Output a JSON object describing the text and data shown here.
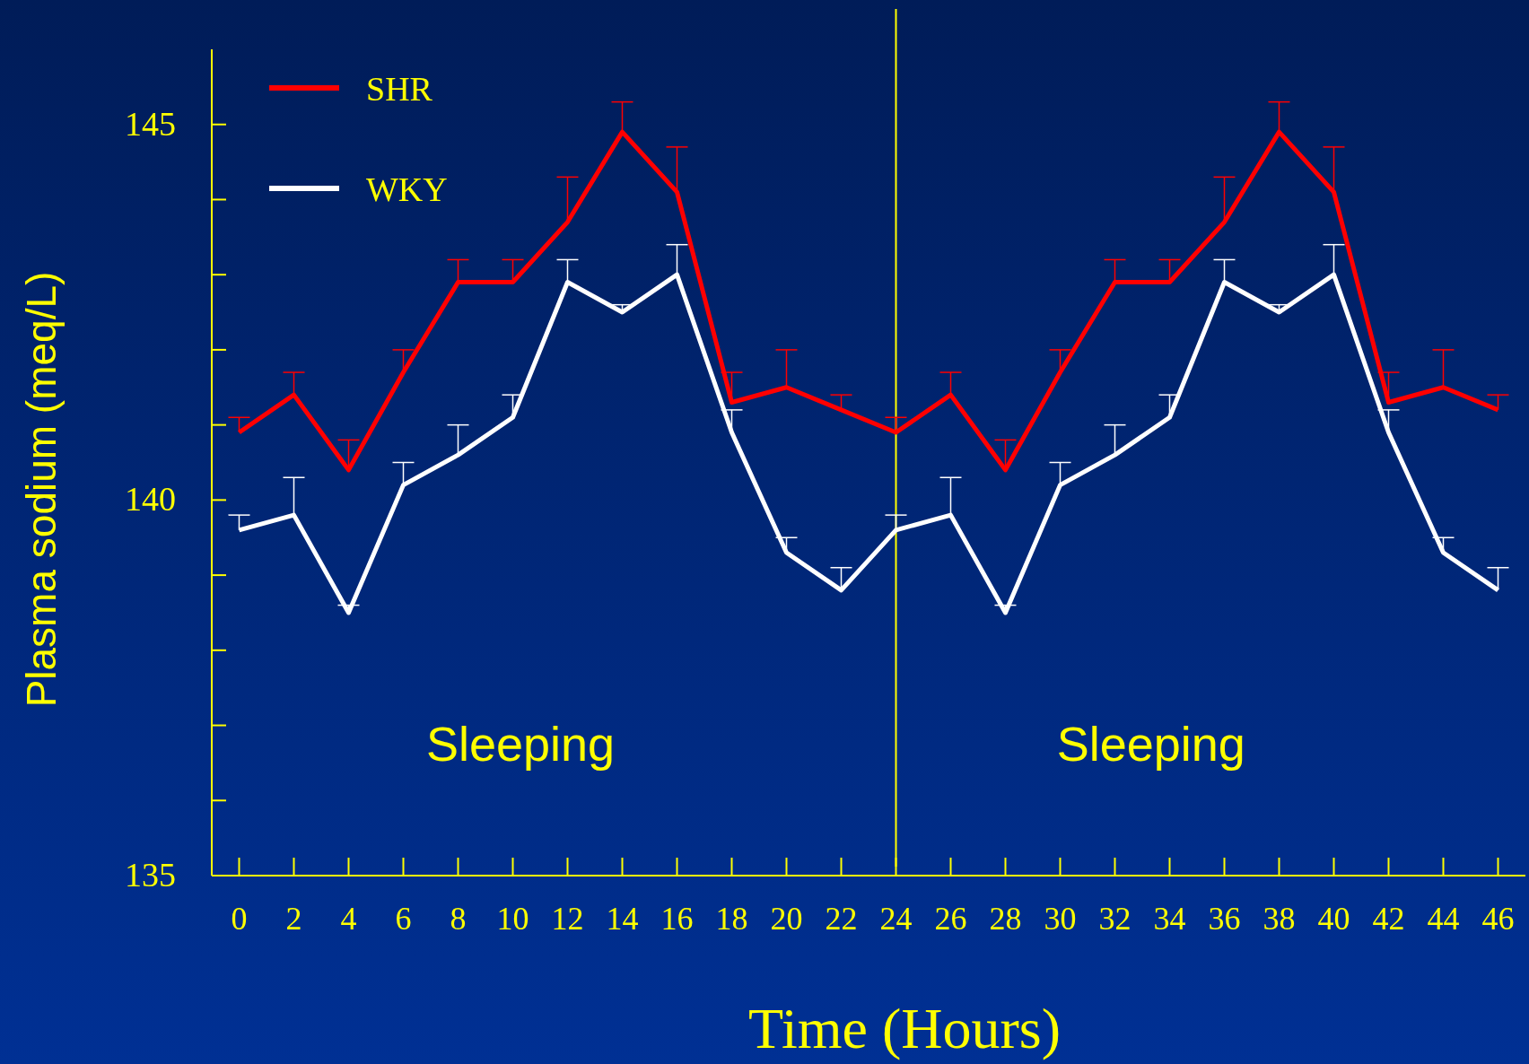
{
  "chart_data": {
    "type": "line",
    "xlabel": "Time (Hours)",
    "ylabel": "Plasma sodium (meq/L)",
    "x": [
      0,
      2,
      4,
      6,
      8,
      10,
      12,
      14,
      16,
      18,
      20,
      22,
      24,
      26,
      28,
      30,
      32,
      34,
      36,
      38,
      40,
      42,
      44,
      46
    ],
    "series": [
      {
        "name": "SHR",
        "color": "#ff0000",
        "values": [
          140.9,
          141.4,
          140.4,
          141.7,
          142.9,
          142.9,
          143.7,
          144.9,
          144.1,
          141.3,
          141.5,
          141.2,
          140.9,
          141.4,
          140.4,
          141.7,
          142.9,
          142.9,
          143.7,
          144.9,
          144.1,
          141.3,
          141.5,
          141.2
        ],
        "errors": [
          [
            140.9,
            141.1
          ],
          [
            141.4,
            141.7
          ],
          [
            140.4,
            140.8
          ],
          [
            141.7,
            142.0
          ],
          [
            142.9,
            143.2
          ],
          [
            142.9,
            143.2
          ],
          [
            143.7,
            144.3
          ],
          [
            144.9,
            145.3
          ],
          [
            144.1,
            144.7
          ],
          [
            141.3,
            141.7
          ],
          [
            141.5,
            142.0
          ],
          [
            141.2,
            141.4
          ],
          [
            140.9,
            141.1
          ],
          [
            141.4,
            141.7
          ],
          [
            140.4,
            140.8
          ],
          [
            141.7,
            142.0
          ],
          [
            142.9,
            143.2
          ],
          [
            142.9,
            143.2
          ],
          [
            143.7,
            144.3
          ],
          [
            144.9,
            145.3
          ],
          [
            144.1,
            144.7
          ],
          [
            141.3,
            141.7
          ],
          [
            141.5,
            142.0
          ],
          [
            141.2,
            141.4
          ]
        ]
      },
      {
        "name": "WKY",
        "color": "#ffffff",
        "values": [
          139.6,
          139.8,
          138.5,
          140.2,
          140.6,
          141.1,
          142.9,
          142.5,
          143.0,
          140.9,
          139.3,
          138.8,
          139.6,
          139.8,
          138.5,
          140.2,
          140.6,
          141.1,
          142.9,
          142.5,
          143.0,
          140.9,
          139.3,
          138.8
        ],
        "errors": [
          [
            139.6,
            139.8
          ],
          [
            139.8,
            140.3
          ],
          [
            138.5,
            138.6
          ],
          [
            140.2,
            140.5
          ],
          [
            140.6,
            141.0
          ],
          [
            141.1,
            141.4
          ],
          [
            142.9,
            143.2
          ],
          [
            142.5,
            142.6
          ],
          [
            143.0,
            143.4
          ],
          [
            140.9,
            141.2
          ],
          [
            139.3,
            139.5
          ],
          [
            138.8,
            139.1
          ],
          [
            139.6,
            139.8
          ],
          [
            139.8,
            140.3
          ],
          [
            138.5,
            138.6
          ],
          [
            140.2,
            140.5
          ],
          [
            140.6,
            141.0
          ],
          [
            141.1,
            141.4
          ],
          [
            142.9,
            143.2
          ],
          [
            142.5,
            142.6
          ],
          [
            143.0,
            143.4
          ],
          [
            140.9,
            141.2
          ],
          [
            139.3,
            139.5
          ],
          [
            138.8,
            139.1
          ]
        ]
      }
    ],
    "xlim": [
      -1,
      47
    ],
    "ylim": [
      135,
      146
    ],
    "xticks": [
      0,
      2,
      4,
      6,
      8,
      10,
      12,
      14,
      16,
      18,
      20,
      22,
      24,
      26,
      28,
      30,
      32,
      34,
      36,
      38,
      40,
      42,
      44,
      46
    ],
    "yticks": [
      135,
      {
        "value": 136,
        "label": null
      },
      {
        "value": 137,
        "label": null
      },
      {
        "value": 138,
        "label": null
      },
      {
        "value": 139,
        "label": null
      },
      140,
      {
        "value": 141,
        "label": null
      },
      {
        "value": 142,
        "label": null
      },
      {
        "value": 143,
        "label": null
      },
      {
        "value": 144,
        "label": null
      },
      145
    ],
    "ref_lines": [
      {
        "axis": "x",
        "value": 24,
        "color": "#ffff00"
      }
    ],
    "annotations": [
      "Sleeping",
      "Sleeping"
    ],
    "legend": "top left",
    "grid": false,
    "marker": "none",
    "line_style": "solid"
  }
}
